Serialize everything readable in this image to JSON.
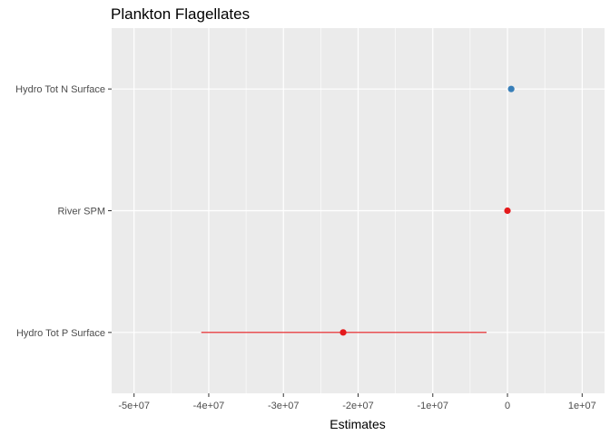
{
  "chart_data": {
    "type": "scatter",
    "subtype": "coefficient-plot-with-error-bars",
    "title": "Plankton Flagellates",
    "xlabel": "Estimates",
    "ylabel": "",
    "xlim": [
      -53000000,
      13000000
    ],
    "x_ticks": [
      {
        "value": -50000000,
        "label": "-5e+07"
      },
      {
        "value": -40000000,
        "label": "-4e+07"
      },
      {
        "value": -30000000,
        "label": "-3e+07"
      },
      {
        "value": -20000000,
        "label": "-2e+07"
      },
      {
        "value": -10000000,
        "label": "-1e+07"
      },
      {
        "value": 0,
        "label": "0"
      },
      {
        "value": 10000000,
        "label": "1e+07"
      }
    ],
    "categories": [
      "Hydro Tot N Surface",
      "River SPM",
      "Hydro Tot P Surface"
    ],
    "points": [
      {
        "term": "Hydro Tot N Surface",
        "estimate": 500000,
        "conf_low": 500000,
        "conf_high": 500000,
        "color": "#377eb8"
      },
      {
        "term": "River SPM",
        "estimate": 0,
        "conf_low": 0,
        "conf_high": 0,
        "color": "#e41a1c"
      },
      {
        "term": "Hydro Tot P Surface",
        "estimate": -22000000,
        "conf_low": -41000000,
        "conf_high": -2800000,
        "color": "#e41a1c"
      }
    ],
    "grid": true,
    "legend": "none",
    "panel_background": "#ebebeb",
    "grid_color": "#ffffff"
  }
}
